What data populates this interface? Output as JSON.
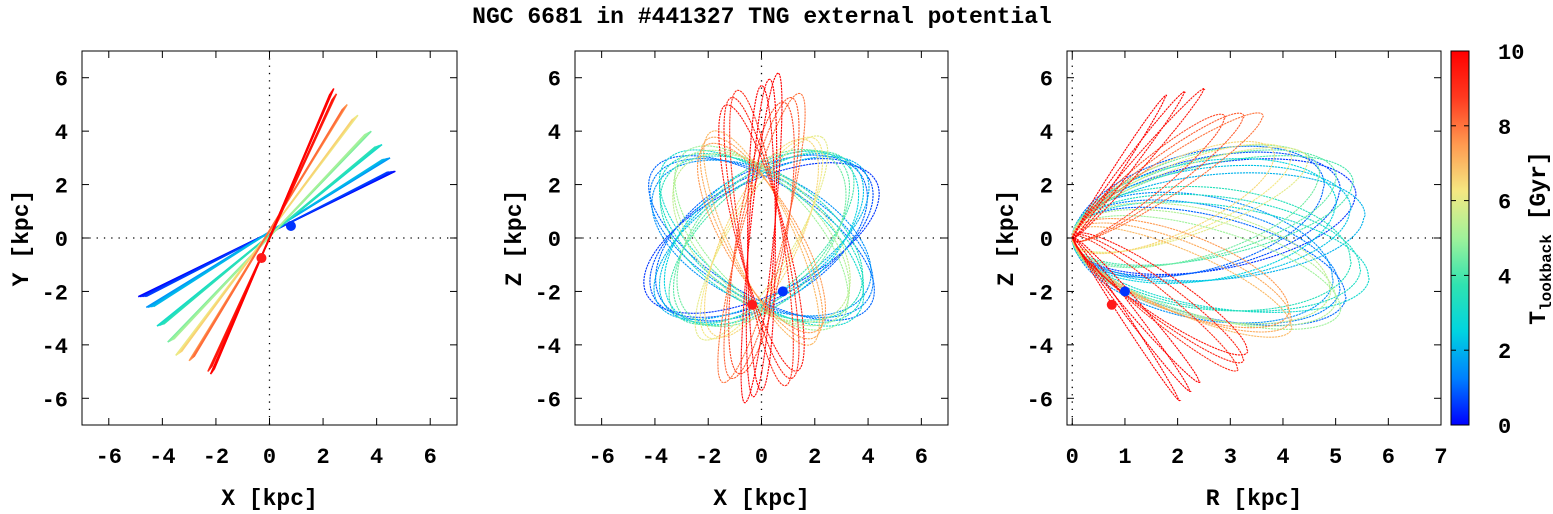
{
  "title": "NGC 6681 in #441327 TNG external potential",
  "colors": {
    "palette": [
      "#0000ff",
      "#0080ff",
      "#00d4e0",
      "#30e3b0",
      "#9ff29a",
      "#f5e882",
      "#ff9a50",
      "#ff3a20",
      "#ff0000"
    ],
    "marker_now": "#0033ff",
    "marker_start": "#ff1a1a"
  },
  "colorbar": {
    "label_main": "T",
    "label_sub": "lookback",
    "label_unit": "[Gyr]",
    "range": [
      0,
      10
    ],
    "ticks": [
      0,
      2,
      4,
      6,
      8,
      10
    ],
    "tick_labels": [
      "0",
      "2",
      "4",
      "6",
      "8",
      "10"
    ]
  },
  "chart_data": [
    {
      "type": "line",
      "name": "x-y projection",
      "xlabel": "X [kpc]",
      "ylabel": "Y [kpc]",
      "xlim": [
        -7,
        7
      ],
      "ylim": [
        -7,
        7
      ],
      "xticks": [
        -6,
        -4,
        -2,
        0,
        2,
        4,
        6
      ],
      "yticks": [
        -6,
        -4,
        -2,
        0,
        2,
        4,
        6
      ],
      "xtick_labels": [
        "-6",
        "-4",
        "-2",
        "0",
        "2",
        "4",
        "6"
      ],
      "ytick_labels": [
        "-6",
        "-4",
        "-2",
        "0",
        "2",
        "4",
        "6"
      ],
      "zero_lines": true,
      "color_by": "lookback time (Gyr)",
      "pattern": "radial orbit segments through origin; angle rotates with time",
      "segments": [
        {
          "t": 0.0,
          "end": [
            4.7,
            2.5
          ],
          "start": [
            -4.9,
            -2.2
          ]
        },
        {
          "t": 1.5,
          "end": [
            4.5,
            3.0
          ],
          "start": [
            -4.6,
            -2.6
          ]
        },
        {
          "t": 3.0,
          "end": [
            4.2,
            3.5
          ],
          "start": [
            -4.2,
            -3.3
          ]
        },
        {
          "t": 4.5,
          "end": [
            3.8,
            4.0
          ],
          "start": [
            -3.8,
            -3.9
          ]
        },
        {
          "t": 6.0,
          "end": [
            3.3,
            4.6
          ],
          "start": [
            -3.5,
            -4.4
          ]
        },
        {
          "t": 7.5,
          "end": [
            2.9,
            5.0
          ],
          "start": [
            -3.0,
            -4.6
          ]
        },
        {
          "t": 9.0,
          "end": [
            2.5,
            5.4
          ],
          "start": [
            -2.3,
            -5.0
          ]
        },
        {
          "t": 10.0,
          "end": [
            2.4,
            5.6
          ],
          "start": [
            -2.2,
            -5.1
          ]
        }
      ],
      "markers": {
        "now": [
          0.8,
          0.45
        ],
        "start": [
          -0.3,
          -0.75
        ]
      }
    },
    {
      "type": "line",
      "name": "x-z projection",
      "xlabel": "X [kpc]",
      "ylabel": "Z [kpc]",
      "xlim": [
        -7,
        7
      ],
      "ylim": [
        -7,
        7
      ],
      "xticks": [
        -6,
        -4,
        -2,
        0,
        2,
        4,
        6
      ],
      "yticks": [
        -6,
        -4,
        -2,
        0,
        2,
        4,
        6
      ],
      "xtick_labels": [
        "-6",
        "-4",
        "-2",
        "0",
        "2",
        "4",
        "6"
      ],
      "ytick_labels": [
        "-6",
        "-4",
        "-2",
        "0",
        "2",
        "4",
        "6"
      ],
      "zero_lines": true,
      "color_by": "lookback time (Gyr)",
      "pattern": "tilted elliptical loops (rosette) within |X|<=5 and |Z|<=6.4",
      "loops": [
        {
          "t": 0.5,
          "a": 4.8,
          "b": 2.1,
          "tilt": 0.5
        },
        {
          "t": 1.0,
          "a": 4.8,
          "b": 2.1,
          "tilt": -0.5
        },
        {
          "t": 2.0,
          "a": 4.6,
          "b": 2.1,
          "tilt": 0.62
        },
        {
          "t": 3.0,
          "a": 4.6,
          "b": 2.1,
          "tilt": -0.62
        },
        {
          "t": 4.0,
          "a": 4.3,
          "b": 2.0,
          "tilt": 0.78
        },
        {
          "t": 5.0,
          "a": 4.3,
          "b": 2.0,
          "tilt": -0.78
        },
        {
          "t": 6.0,
          "a": 4.4,
          "b": 1.2,
          "tilt": 1.08
        },
        {
          "t": 7.0,
          "a": 4.4,
          "b": 1.2,
          "tilt": -1.08
        },
        {
          "t": 8.0,
          "a": 5.6,
          "b": 0.8,
          "tilt": 1.36
        },
        {
          "t": 9.0,
          "a": 5.6,
          "b": 0.8,
          "tilt": -1.36
        },
        {
          "t": 10.0,
          "a": 6.2,
          "b": 0.45,
          "tilt": 1.52
        }
      ],
      "markers": {
        "now": [
          0.8,
          -2.0
        ],
        "start": [
          -0.35,
          -2.5
        ]
      }
    },
    {
      "type": "line",
      "name": "R-z projection",
      "xlabel": "R [kpc]",
      "ylabel": "Z [kpc]",
      "xlim": [
        -0.1,
        7
      ],
      "ylim": [
        -7,
        7
      ],
      "xticks": [
        0,
        1,
        2,
        3,
        4,
        5,
        6,
        7
      ],
      "yticks": [
        -6,
        -4,
        -2,
        0,
        2,
        4,
        6
      ],
      "xtick_labels": [
        "0",
        "1",
        "2",
        "3",
        "4",
        "5",
        "6",
        "7"
      ],
      "ytick_labels": [
        "-6",
        "-4",
        "-2",
        "0",
        "2",
        "4",
        "6"
      ],
      "zero_lines": true,
      "color_by": "lookback time (Gyr)",
      "pattern": "meridional loops fanning from R~0 out to R~6",
      "loops": [
        {
          "t": 0.5,
          "a": 5.6,
          "b": 2.1,
          "tilt": 0.34
        },
        {
          "t": 1.0,
          "a": 5.6,
          "b": 2.1,
          "tilt": -0.34
        },
        {
          "t": 2.0,
          "a": 5.6,
          "b": 2.0,
          "tilt": 0.2
        },
        {
          "t": 3.0,
          "a": 5.8,
          "b": 2.0,
          "tilt": -0.2
        },
        {
          "t": 4.0,
          "a": 5.7,
          "b": 1.9,
          "tilt": 0.42
        },
        {
          "t": 5.0,
          "a": 5.7,
          "b": 1.9,
          "tilt": -0.42
        },
        {
          "t": 6.0,
          "a": 5.3,
          "b": 1.6,
          "tilt": 0.62
        },
        {
          "t": 7.0,
          "a": 5.3,
          "b": 1.6,
          "tilt": -0.62
        },
        {
          "t": 8.0,
          "a": 5.8,
          "b": 1.3,
          "tilt": 0.95
        },
        {
          "t": 9.0,
          "a": 5.8,
          "b": 1.3,
          "tilt": -0.95
        },
        {
          "t": 9.5,
          "a": 6.1,
          "b": 0.9,
          "tilt": 1.2
        },
        {
          "t": 10.0,
          "a": 6.4,
          "b": 0.9,
          "tilt": -1.2
        }
      ],
      "markers": {
        "now": [
          1.0,
          -2.0
        ],
        "start": [
          0.75,
          -2.5
        ]
      }
    }
  ]
}
